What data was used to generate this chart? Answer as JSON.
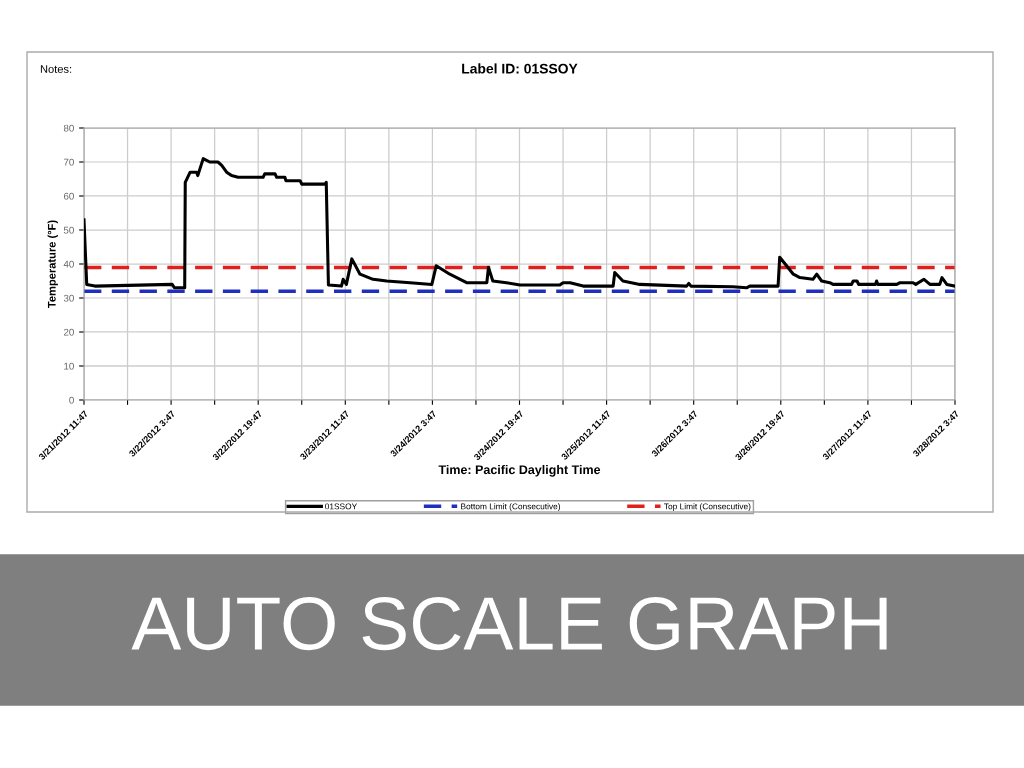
{
  "chart_data": {
    "type": "line",
    "title": "Label ID: 01SSOY",
    "xlabel": "Time: Pacific Daylight Time",
    "ylabel": "Temperature (°F)",
    "annotations": [
      "Notes:",
      "AUTO SCALE GRAPH"
    ],
    "x": [
      "2012-03-21T11:47",
      "2012-03-21T12:17",
      "2012-03-21T13:47",
      "2012-03-22T03:59",
      "2012-03-22T04:23",
      "2012-03-22T06:17",
      "2012-03-22T06:23",
      "2012-03-22T07:17",
      "2012-03-22T08:29",
      "2012-03-22T08:41",
      "2012-03-22T09:41",
      "2012-03-22T10:53",
      "2012-03-22T12:23",
      "2012-03-22T13:05",
      "2012-03-22T13:59",
      "2012-03-22T14:53",
      "2012-03-22T16:05",
      "2012-03-22T20:41",
      "2012-03-22T20:59",
      "2012-03-22T22:53",
      "2012-03-22T23:11",
      "2012-03-23T00:41",
      "2012-03-23T00:53",
      "2012-03-23T03:29",
      "2012-03-23T03:47",
      "2012-03-23T08:05",
      "2012-03-23T08:17",
      "2012-03-23T08:41",
      "2012-03-23T11:05",
      "2012-03-23T11:23",
      "2012-03-23T11:59",
      "2012-03-23T12:59",
      "2012-03-23T14:29",
      "2012-03-23T16:53",
      "2012-03-23T19:23",
      "2012-03-23T23:41",
      "2012-03-24T03:41",
      "2012-03-24T04:29",
      "2012-03-24T06:59",
      "2012-03-24T08:53",
      "2012-03-24T10:05",
      "2012-03-24T13:47",
      "2012-03-24T14:05",
      "2012-03-24T14:53",
      "2012-03-24T17:23",
      "2012-03-24T19:53",
      "2012-03-25T03:11",
      "2012-03-25T03:47",
      "2012-03-25T05:05",
      "2012-03-25T07:29",
      "2012-03-25T12:59",
      "2012-03-25T13:17",
      "2012-03-25T14:47",
      "2012-03-25T17:53",
      "2012-03-26T02:29",
      "2012-03-26T02:53",
      "2012-03-26T03:17",
      "2012-03-26T10:59",
      "2012-03-26T13:29",
      "2012-03-26T14:05",
      "2012-03-26T19:17",
      "2012-03-26T19:35",
      "2012-03-26T20:35",
      "2012-03-26T22:05",
      "2012-03-26T23:17",
      "2012-03-27T01:41",
      "2012-03-27T02:23",
      "2012-03-27T03:17",
      "2012-03-27T04:47",
      "2012-03-27T05:23",
      "2012-03-27T08:47",
      "2012-03-27T09:05",
      "2012-03-27T09:47",
      "2012-03-27T10:05",
      "2012-03-27T13:11",
      "2012-03-27T13:23",
      "2012-03-27T13:35",
      "2012-03-27T17:05",
      "2012-03-27T17:41",
      "2012-03-27T20:05",
      "2012-03-27T20:35",
      "2012-03-27T22:05",
      "2012-03-27T23:11",
      "2012-03-28T00:59",
      "2012-03-28T01:23",
      "2012-03-28T02:17",
      "2012-03-28T03:47"
    ],
    "series": [
      {
        "name": "01SSOY",
        "color": "#000000",
        "values": [
          53,
          34,
          33.5,
          34,
          33,
          33,
          64,
          67,
          67,
          66,
          71,
          70,
          70,
          69,
          67,
          66,
          65.5,
          65.5,
          66.5,
          66.5,
          65.5,
          65.5,
          64.5,
          64.5,
          63.5,
          63.5,
          64,
          33.8,
          33.5,
          35.5,
          34,
          41.5,
          37,
          35.5,
          35,
          34.5,
          34,
          39.5,
          37,
          35.5,
          34.5,
          34.5,
          39,
          35,
          34.5,
          33.8,
          33.8,
          34.5,
          34.5,
          33.5,
          33.5,
          37.5,
          35,
          34,
          33.5,
          34.3,
          33.5,
          33.3,
          33,
          33.5,
          33.5,
          42,
          40,
          37,
          36,
          35.5,
          37,
          35,
          34.5,
          34,
          34,
          35,
          35,
          34,
          34,
          35,
          34,
          34,
          34.5,
          34.5,
          34,
          35.5,
          34,
          34,
          36,
          34,
          33.5
        ]
      }
    ],
    "ref_lines": [
      {
        "axis": "y",
        "value": 32,
        "label": "Bottom Limit (Consecutive)",
        "color": "#1f2fbf",
        "line_style": "dashed"
      },
      {
        "axis": "y",
        "value": 39,
        "label": "Top Limit (Consecutive)",
        "color": "#e0201c",
        "line_style": "dashed"
      }
    ],
    "xlim": [
      "2012-03-21T11:47",
      "2012-03-28T03:47"
    ],
    "xticks": [
      {
        "value": "2012-03-21T11:47",
        "label": "3/21/2012 11:47"
      },
      {
        "value": "2012-03-21T19:47",
        "label": null
      },
      {
        "value": "2012-03-22T03:47",
        "label": "3/22/2012 3:47"
      },
      {
        "value": "2012-03-22T11:47",
        "label": null
      },
      {
        "value": "2012-03-22T19:47",
        "label": "3/22/2012 19:47"
      },
      {
        "value": "2012-03-23T03:47",
        "label": null
      },
      {
        "value": "2012-03-23T11:47",
        "label": "3/23/2012 11:47"
      },
      {
        "value": "2012-03-23T19:47",
        "label": null
      },
      {
        "value": "2012-03-24T03:47",
        "label": "3/24/2012 3:47"
      },
      {
        "value": "2012-03-24T11:47",
        "label": null
      },
      {
        "value": "2012-03-24T19:47",
        "label": "3/24/2012 19:47"
      },
      {
        "value": "2012-03-25T03:47",
        "label": null
      },
      {
        "value": "2012-03-25T11:47",
        "label": "3/25/2012 11:47"
      },
      {
        "value": "2012-03-25T19:47",
        "label": null
      },
      {
        "value": "2012-03-26T03:47",
        "label": "3/26/2012 3:47"
      },
      {
        "value": "2012-03-26T11:47",
        "label": null
      },
      {
        "value": "2012-03-26T19:47",
        "label": "3/26/2012 19:47"
      },
      {
        "value": "2012-03-27T03:47",
        "label": null
      },
      {
        "value": "2012-03-27T11:47",
        "label": "3/27/2012 11:47"
      },
      {
        "value": "2012-03-27T19:47",
        "label": null
      },
      {
        "value": "2012-03-28T03:47",
        "label": "3/28/2012 3:47"
      }
    ],
    "ylim": [
      0,
      80
    ],
    "yticks": [
      0,
      10,
      20,
      30,
      40,
      50,
      60,
      70,
      80
    ],
    "grid": true,
    "legend": "bottom",
    "line_style": "solid",
    "marker": "none"
  }
}
